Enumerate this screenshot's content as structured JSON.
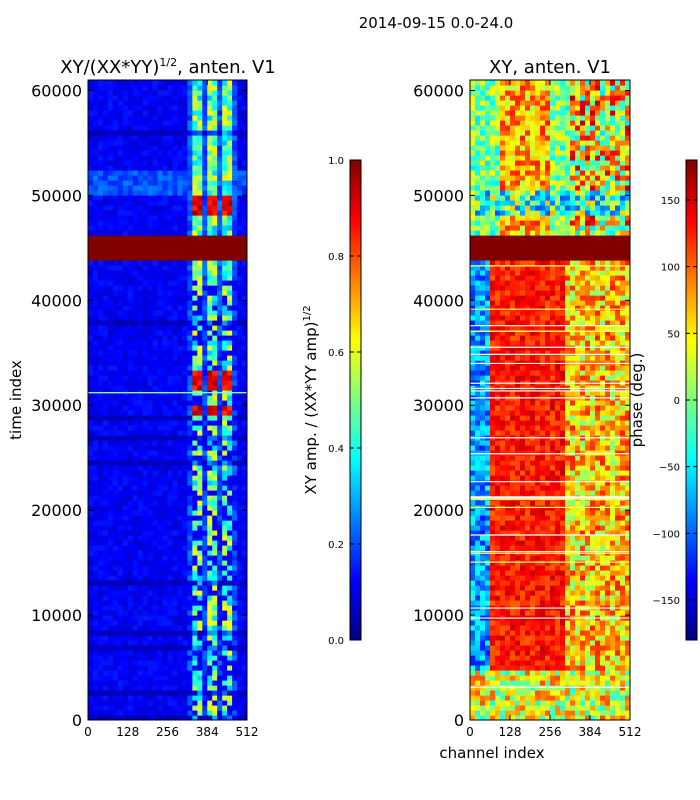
{
  "figure_title": "2014-09-15 0.0-24.0",
  "chart_data": [
    {
      "type": "heatmap",
      "title_main": "XY/(XX*YY)",
      "title_sup": "1/2",
      "title_tail": ", anten. V1",
      "xlabel": "",
      "ylabel": "time index",
      "xlim": [
        0,
        512
      ],
      "ylim": [
        0,
        61000
      ],
      "xticks": [
        "0",
        "128",
        "256",
        "384",
        "512"
      ],
      "yticks": [
        "0",
        "10000",
        "20000",
        "30000",
        "40000",
        "50000",
        "60000"
      ],
      "colorbar": {
        "label_main": "XY amp. / (XX*YY amp)",
        "label_sup": "1/2",
        "range": [
          0.0,
          1.0
        ],
        "ticks": [
          "0.0",
          "0.2",
          "0.4",
          "0.6",
          "0.8",
          "1.0"
        ]
      },
      "features": {
        "saturated_rows": [
          44000,
          46300
        ],
        "bright_channel_band": [
          320,
          480
        ],
        "bright_row_bands": [
          [
            48200,
            50000
          ],
          [
            31500,
            33500
          ],
          [
            28500,
            30000
          ]
        ]
      }
    },
    {
      "type": "heatmap",
      "title_main": "XY, anten. V1",
      "xlabel": "channel index",
      "ylabel": "",
      "xlim": [
        0,
        512
      ],
      "ylim": [
        0,
        61000
      ],
      "xticks": [
        "0",
        "128",
        "256",
        "384",
        "512"
      ],
      "yticks": [
        "0",
        "10000",
        "20000",
        "30000",
        "40000",
        "50000",
        "60000"
      ],
      "colorbar": {
        "label": "phase (deg.)",
        "range": [
          -180,
          180
        ],
        "ticks": [
          "−150",
          "−100",
          "−50",
          "0",
          "50",
          "100",
          "150"
        ]
      },
      "features": {
        "saturated_rows": [
          44000,
          46300
        ]
      }
    }
  ]
}
